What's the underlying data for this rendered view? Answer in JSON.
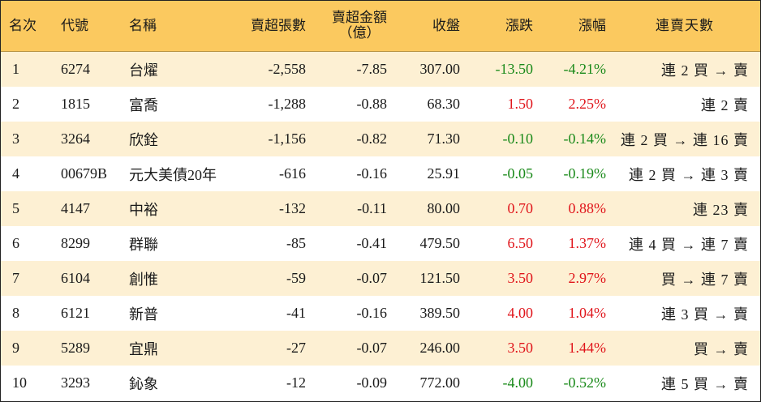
{
  "table": {
    "headers": {
      "rank": "名次",
      "code": "代號",
      "name": "名稱",
      "sell_shares": "賣超張數",
      "sell_amount_line1": "賣超金額",
      "sell_amount_line2": "（億）",
      "close": "收盤",
      "change": "漲跌",
      "change_pct": "漲幅",
      "streak": "連賣天數"
    },
    "colors": {
      "up": "#e0151b",
      "down": "#1a8a1a",
      "header_bg": "#fbc95f",
      "stripe_bg": "#fdf0d3"
    },
    "rows": [
      {
        "rank": "1",
        "code": "6274",
        "name": "台燿",
        "sell_shares": "-2,558",
        "sell_amount": "-7.85",
        "close": "307.00",
        "change": "-13.50",
        "change_pct": "-4.21%",
        "direction": "down",
        "streak": "連 2 買 → 賣"
      },
      {
        "rank": "2",
        "code": "1815",
        "name": "富喬",
        "sell_shares": "-1,288",
        "sell_amount": "-0.88",
        "close": "68.30",
        "change": "1.50",
        "change_pct": "2.25%",
        "direction": "up",
        "streak": "連 2 賣"
      },
      {
        "rank": "3",
        "code": "3264",
        "name": "欣銓",
        "sell_shares": "-1,156",
        "sell_amount": "-0.82",
        "close": "71.30",
        "change": "-0.10",
        "change_pct": "-0.14%",
        "direction": "down",
        "streak": "連 2 買 → 連 16 賣"
      },
      {
        "rank": "4",
        "code": "00679B",
        "name": "元大美債20年",
        "sell_shares": "-616",
        "sell_amount": "-0.16",
        "close": "25.91",
        "change": "-0.05",
        "change_pct": "-0.19%",
        "direction": "down",
        "streak": "連 2 買 → 連 3 賣"
      },
      {
        "rank": "5",
        "code": "4147",
        "name": "中裕",
        "sell_shares": "-132",
        "sell_amount": "-0.11",
        "close": "80.00",
        "change": "0.70",
        "change_pct": "0.88%",
        "direction": "up",
        "streak": "連 23 賣"
      },
      {
        "rank": "6",
        "code": "8299",
        "name": "群聯",
        "sell_shares": "-85",
        "sell_amount": "-0.41",
        "close": "479.50",
        "change": "6.50",
        "change_pct": "1.37%",
        "direction": "up",
        "streak": "連 4 買 → 連 7 賣"
      },
      {
        "rank": "7",
        "code": "6104",
        "name": "創惟",
        "sell_shares": "-59",
        "sell_amount": "-0.07",
        "close": "121.50",
        "change": "3.50",
        "change_pct": "2.97%",
        "direction": "up",
        "streak": "買 → 連 7 賣"
      },
      {
        "rank": "8",
        "code": "6121",
        "name": "新普",
        "sell_shares": "-41",
        "sell_amount": "-0.16",
        "close": "389.50",
        "change": "4.00",
        "change_pct": "1.04%",
        "direction": "up",
        "streak": "連 3 買 → 賣"
      },
      {
        "rank": "9",
        "code": "5289",
        "name": "宜鼎",
        "sell_shares": "-27",
        "sell_amount": "-0.07",
        "close": "246.00",
        "change": "3.50",
        "change_pct": "1.44%",
        "direction": "up",
        "streak": "買 → 賣"
      },
      {
        "rank": "10",
        "code": "3293",
        "name": "鈊象",
        "sell_shares": "-12",
        "sell_amount": "-0.09",
        "close": "772.00",
        "change": "-4.00",
        "change_pct": "-0.52%",
        "direction": "down",
        "streak": "連 5 買 → 賣"
      }
    ]
  }
}
